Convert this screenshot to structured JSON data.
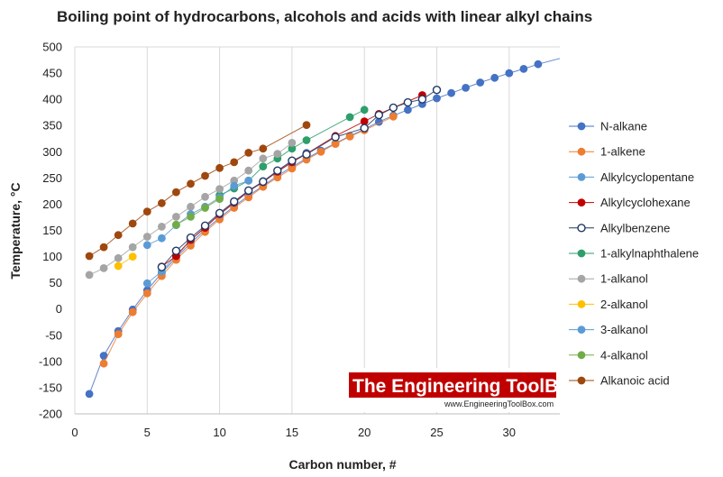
{
  "chart_data": {
    "type": "scatter",
    "title": "Boiling point of hydrocarbons, alcohols and acids with linear alkyl chains",
    "xlabel": "Carbon number, #",
    "ylabel": "Temperature, °C",
    "xlim": [
      0,
      33.5
    ],
    "ylim": [
      -200,
      500
    ],
    "xticks": [
      0,
      5,
      10,
      15,
      20,
      25,
      30
    ],
    "yticks": [
      -200,
      -150,
      -100,
      -50,
      0,
      50,
      100,
      150,
      200,
      250,
      300,
      350,
      400,
      450,
      500
    ],
    "grid": "vertical",
    "legend_position": "right",
    "series": [
      {
        "name": "N-alkane",
        "color": "#4472c4",
        "marker": "filled",
        "points": [
          [
            1,
            -162
          ],
          [
            2,
            -89
          ],
          [
            3,
            -42
          ],
          [
            4,
            -1
          ],
          [
            5,
            36
          ],
          [
            6,
            69
          ],
          [
            7,
            98
          ],
          [
            8,
            126
          ],
          [
            9,
            151
          ],
          [
            10,
            174
          ],
          [
            11,
            196
          ],
          [
            12,
            216
          ],
          [
            13,
            235
          ],
          [
            14,
            254
          ],
          [
            15,
            271
          ],
          [
            16,
            287
          ],
          [
            17,
            302
          ],
          [
            18,
            316
          ],
          [
            19,
            330
          ],
          [
            20,
            343
          ],
          [
            21,
            357
          ],
          [
            22,
            369
          ],
          [
            23,
            380
          ],
          [
            24,
            391
          ],
          [
            25,
            402
          ],
          [
            26,
            412
          ],
          [
            27,
            422
          ],
          [
            28,
            432
          ],
          [
            29,
            441
          ],
          [
            30,
            450
          ],
          [
            31,
            458
          ],
          [
            32,
            467
          ]
        ],
        "trend": [
          33.5,
          478
        ]
      },
      {
        "name": "1-alkene",
        "color": "#ed7d31",
        "marker": "filled",
        "points": [
          [
            2,
            -104
          ],
          [
            3,
            -48
          ],
          [
            4,
            -6
          ],
          [
            5,
            30
          ],
          [
            6,
            63
          ],
          [
            7,
            94
          ],
          [
            8,
            121
          ],
          [
            9,
            147
          ],
          [
            10,
            171
          ],
          [
            11,
            193
          ],
          [
            12,
            213
          ],
          [
            13,
            233
          ],
          [
            14,
            251
          ],
          [
            15,
            268
          ],
          [
            16,
            285
          ],
          [
            17,
            300
          ],
          [
            18,
            315
          ],
          [
            19,
            329
          ],
          [
            20,
            341
          ],
          [
            22,
            367
          ]
        ]
      },
      {
        "name": "Alkylcyclopentane",
        "color": "#5b9bd5",
        "marker": "filled",
        "points": [
          [
            5,
            49
          ],
          [
            6,
            72
          ],
          [
            7,
            103
          ],
          [
            8,
            131
          ],
          [
            9,
            157
          ],
          [
            10,
            180
          ],
          [
            11,
            202
          ],
          [
            12,
            224
          ],
          [
            13,
            244
          ],
          [
            14,
            263
          ],
          [
            15,
            281
          ],
          [
            16,
            298
          ]
        ]
      },
      {
        "name": "Alkylcyclohexane",
        "color": "#c00000",
        "marker": "filled",
        "points": [
          [
            6,
            81
          ],
          [
            7,
            101
          ],
          [
            8,
            132
          ],
          [
            9,
            155
          ],
          [
            10,
            181
          ],
          [
            11,
            203
          ],
          [
            12,
            225
          ],
          [
            13,
            242
          ],
          [
            14,
            262
          ],
          [
            15,
            280
          ],
          [
            16,
            296
          ],
          [
            18,
            330
          ],
          [
            20,
            358
          ],
          [
            21,
            372
          ],
          [
            24,
            408
          ]
        ]
      },
      {
        "name": "Alkylbenzene",
        "color": "#203864",
        "marker": "open",
        "points": [
          [
            6,
            80
          ],
          [
            7,
            111
          ],
          [
            8,
            136
          ],
          [
            9,
            159
          ],
          [
            10,
            183
          ],
          [
            11,
            205
          ],
          [
            12,
            226
          ],
          [
            13,
            243
          ],
          [
            14,
            264
          ],
          [
            15,
            283
          ],
          [
            16,
            295
          ],
          [
            18,
            328
          ],
          [
            20,
            345
          ],
          [
            21,
            370
          ],
          [
            22,
            384
          ],
          [
            23,
            394
          ],
          [
            24,
            400
          ],
          [
            25,
            418
          ]
        ]
      },
      {
        "name": "1-alkylnaphthalene",
        "color": "#2e9e6b",
        "marker": "filled",
        "points": [
          [
            10,
            217
          ],
          [
            11,
            230
          ],
          [
            12,
            245
          ],
          [
            13,
            272
          ],
          [
            14,
            287
          ],
          [
            15,
            306
          ],
          [
            16,
            322
          ],
          [
            19,
            366
          ],
          [
            20,
            380
          ]
        ]
      },
      {
        "name": "1-alkanol",
        "color": "#a5a5a5",
        "marker": "filled",
        "points": [
          [
            1,
            65
          ],
          [
            2,
            78
          ],
          [
            3,
            97
          ],
          [
            4,
            118
          ],
          [
            5,
            138
          ],
          [
            6,
            157
          ],
          [
            7,
            176
          ],
          [
            8,
            195
          ],
          [
            9,
            214
          ],
          [
            10,
            229
          ],
          [
            11,
            245
          ],
          [
            12,
            264
          ],
          [
            13,
            287
          ],
          [
            14,
            296
          ],
          [
            15,
            317
          ]
        ]
      },
      {
        "name": "2-alkanol",
        "color": "#ffc000",
        "marker": "filled",
        "points": [
          [
            3,
            82
          ],
          [
            4,
            100
          ]
        ]
      },
      {
        "name": "3-alkanol",
        "color": "#5b9bd5",
        "marker": "filled",
        "points": [
          [
            5,
            122
          ],
          [
            6,
            135
          ],
          [
            7,
            160
          ],
          [
            8,
            181
          ],
          [
            9,
            195
          ],
          [
            10,
            213
          ],
          [
            11,
            235
          ],
          [
            12,
            245
          ]
        ]
      },
      {
        "name": "4-alkanol",
        "color": "#70ad47",
        "marker": "filled",
        "points": [
          [
            7,
            161
          ],
          [
            8,
            176
          ],
          [
            9,
            193
          ],
          [
            10,
            210
          ]
        ]
      },
      {
        "name": "Alkanoic acid",
        "color": "#9e480e",
        "marker": "filled",
        "points": [
          [
            1,
            101
          ],
          [
            2,
            118
          ],
          [
            3,
            141
          ],
          [
            4,
            163
          ],
          [
            5,
            186
          ],
          [
            6,
            202
          ],
          [
            7,
            223
          ],
          [
            8,
            239
          ],
          [
            9,
            254
          ],
          [
            10,
            269
          ],
          [
            11,
            280
          ],
          [
            12,
            298
          ],
          [
            13,
            306
          ],
          [
            16,
            351
          ]
        ]
      }
    ]
  },
  "watermark": {
    "title": "The Engineering ToolBox",
    "url": "www.EngineeringToolBox.com"
  }
}
